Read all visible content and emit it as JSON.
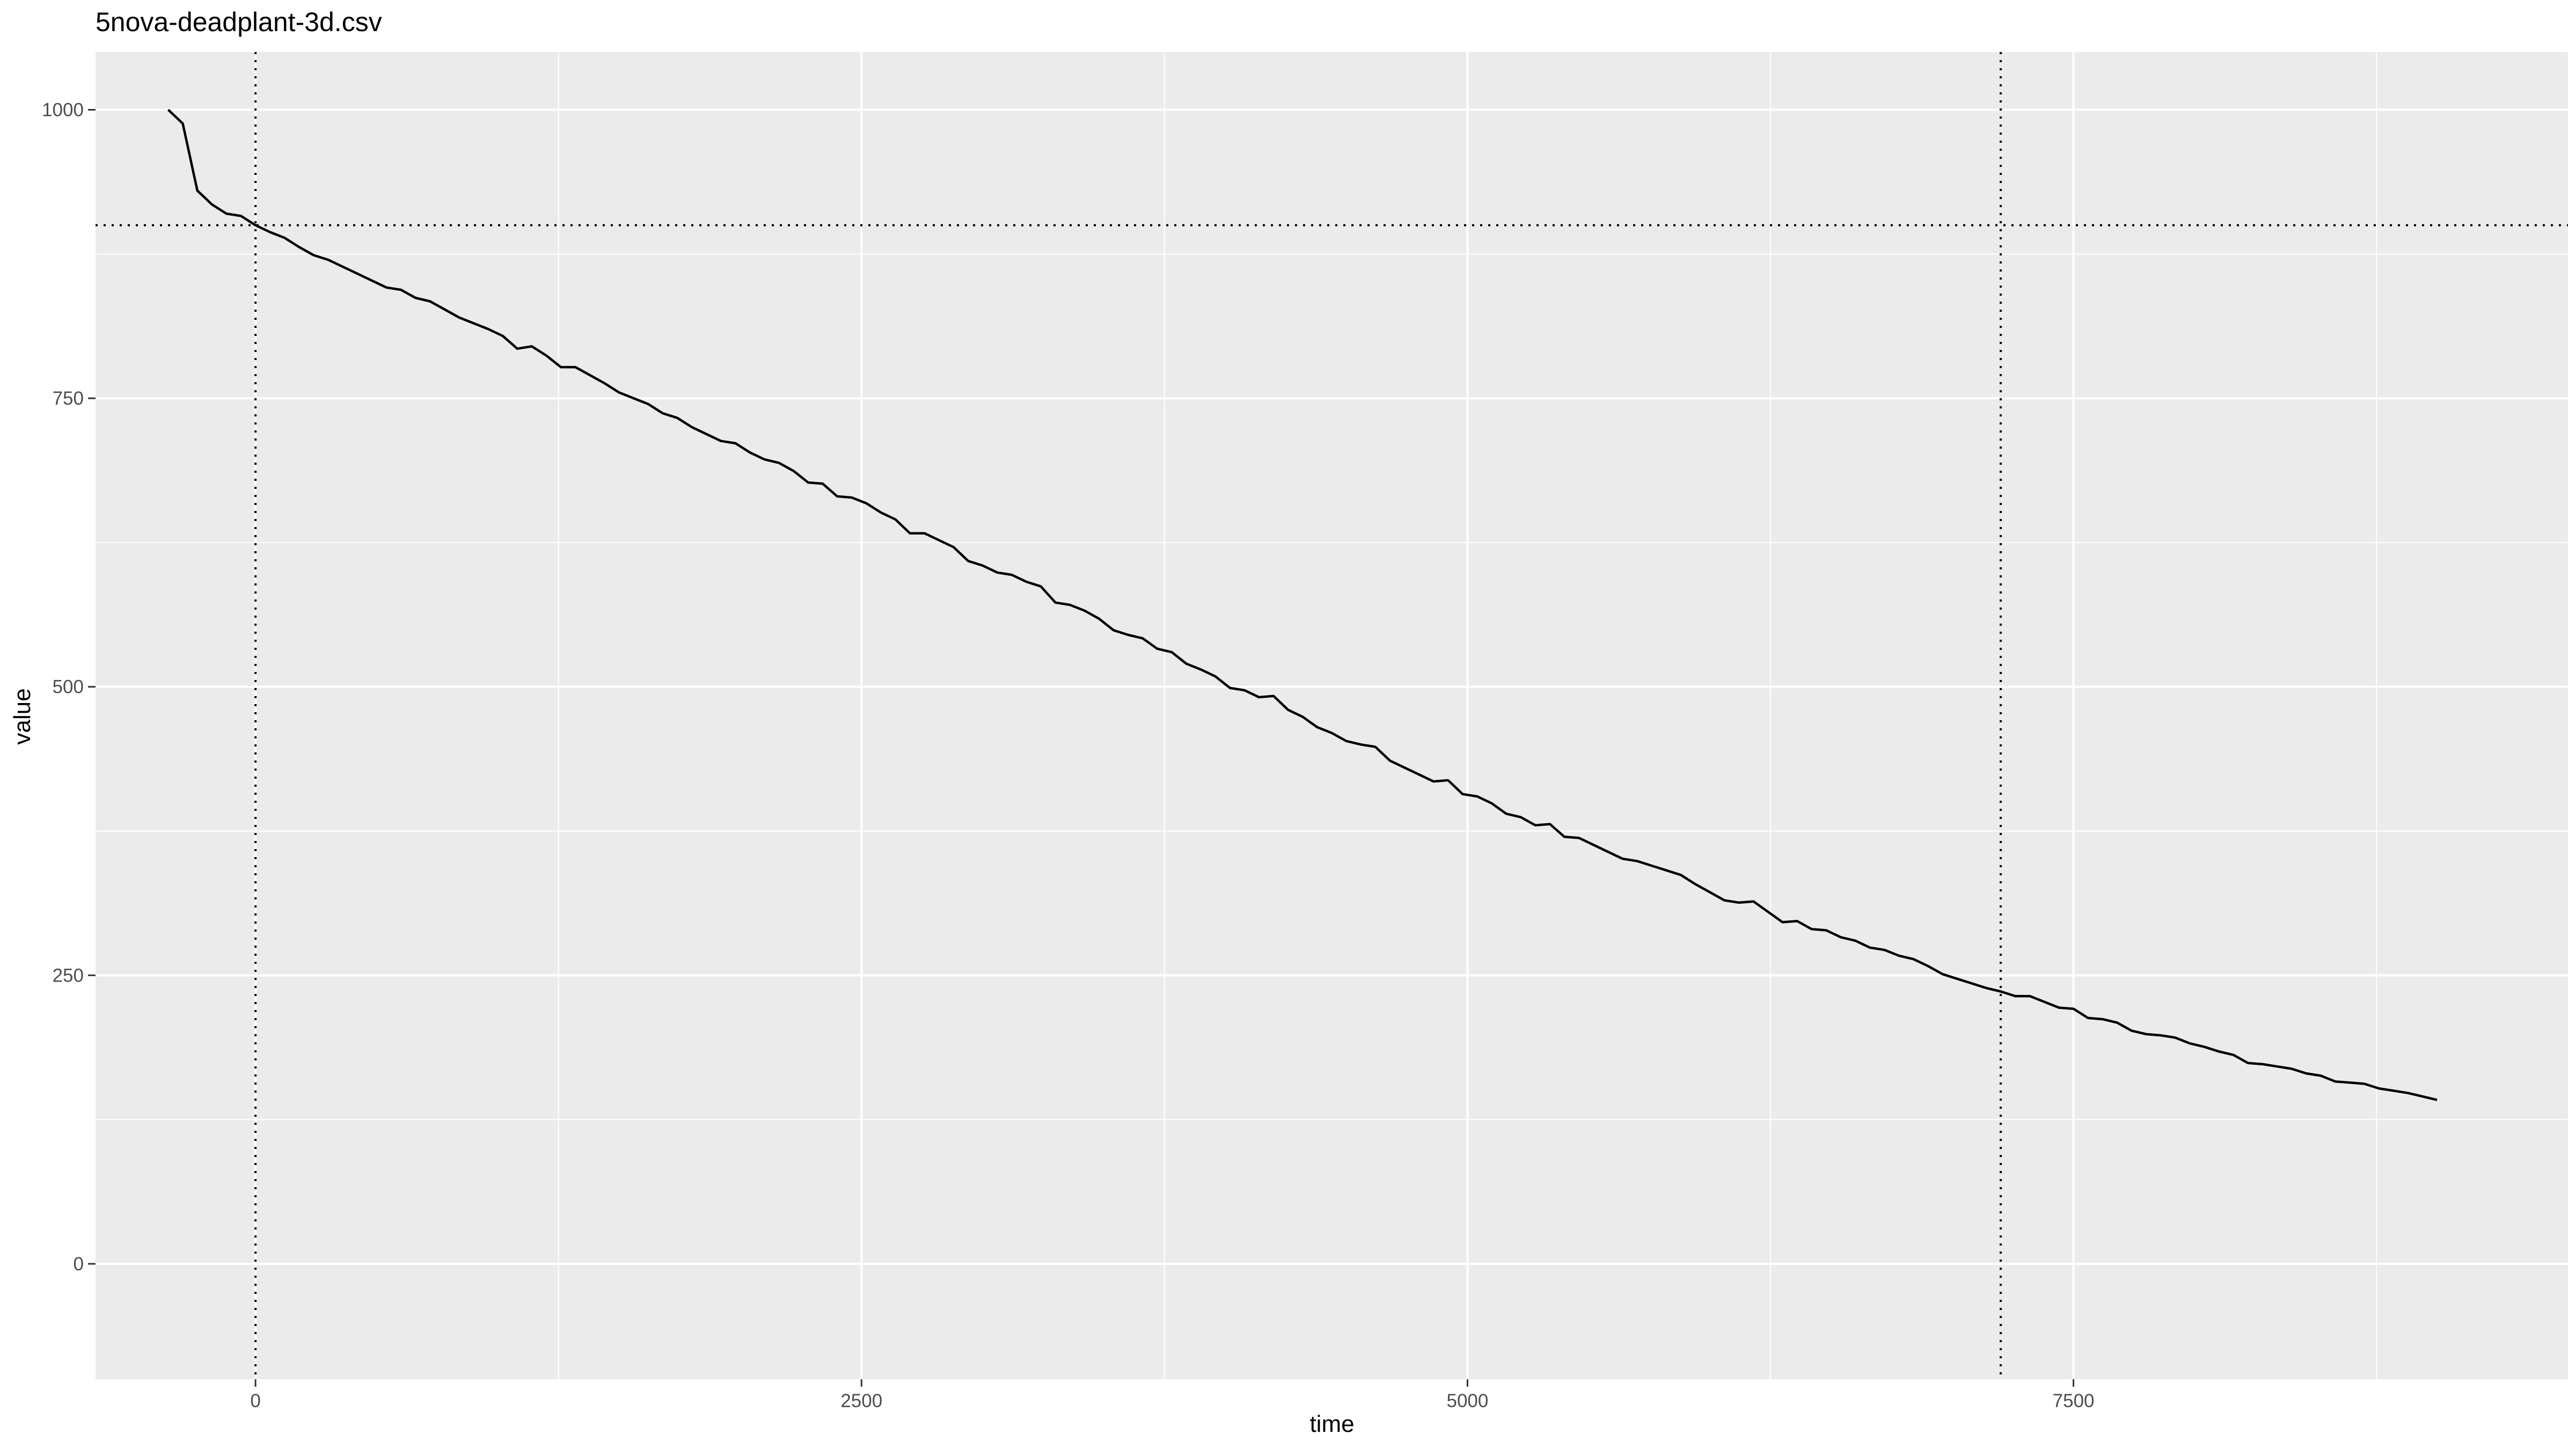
{
  "chart_data": {
    "type": "line",
    "title": "5nova-deadplant-3d.csv",
    "xlabel": "time",
    "ylabel": "value",
    "xlim": [
      -660,
      9540
    ],
    "ylim": [
      -100,
      1050
    ],
    "x_ticks": [
      0,
      2500,
      5000,
      7500
    ],
    "x_tick_labels": [
      "0",
      "2500",
      "5000",
      "7500"
    ],
    "x_minor_ticks": [
      -1250,
      1250,
      3750,
      6250,
      8750
    ],
    "y_ticks": [
      0,
      250,
      500,
      750,
      1000
    ],
    "y_tick_labels": [
      "0",
      "250",
      "500",
      "750",
      "1000"
    ],
    "y_minor_ticks": [
      125,
      375,
      625,
      875
    ],
    "grid": true,
    "legend": "none",
    "panel_background": "#ebebeb",
    "grid_color": "#ffffff",
    "line_color": "#000000",
    "reference_lines": {
      "vertical": [
        0,
        7200
      ],
      "horizontal": [
        900
      ],
      "style": "dotted"
    },
    "series": [
      {
        "x": [
          -360,
          -300,
          -240,
          -180,
          -120,
          -60,
          0,
          60,
          120,
          180,
          240,
          300,
          360,
          420,
          480,
          540,
          600,
          660,
          720,
          780,
          840,
          900,
          960,
          1020,
          1080,
          1140,
          1200,
          1260,
          1320,
          1380,
          1440,
          1500,
          1560,
          1620,
          1680,
          1740,
          1800,
          1860,
          1920,
          1980,
          2040,
          2100,
          2160,
          2220,
          2280,
          2340,
          2400,
          2460,
          2520,
          2580,
          2640,
          2700,
          2760,
          2820,
          2880,
          2940,
          3000,
          3060,
          3120,
          3180,
          3240,
          3300,
          3360,
          3420,
          3480,
          3540,
          3600,
          3660,
          3720,
          3780,
          3840,
          3900,
          3960,
          4020,
          4080,
          4140,
          4200,
          4260,
          4320,
          4380,
          4440,
          4500,
          4560,
          4620,
          4680,
          4740,
          4800,
          4860,
          4920,
          4980,
          5040,
          5100,
          5160,
          5220,
          5280,
          5340,
          5400,
          5460,
          5520,
          5580,
          5640,
          5700,
          5760,
          5820,
          5880,
          5940,
          6000,
          6060,
          6120,
          6180,
          6240,
          6300,
          6360,
          6420,
          6480,
          6540,
          6600,
          6660,
          6720,
          6780,
          6840,
          6900,
          6960,
          7020,
          7080,
          7140,
          7200,
          7260,
          7320,
          7380,
          7440,
          7500,
          7560,
          7620,
          7680,
          7740,
          7800,
          7860,
          7920,
          7980,
          8040,
          8100,
          8160,
          8220,
          8280,
          8340,
          8400,
          8460,
          8520,
          8580,
          8640,
          8700,
          8760,
          8820,
          8880,
          8940,
          9000
        ],
        "values": [
          1000,
          988,
          930,
          918,
          910,
          908,
          900,
          894,
          889,
          881,
          874,
          870,
          864,
          858,
          852,
          846,
          844,
          837,
          834,
          827,
          820,
          815,
          810,
          804,
          793,
          795,
          787,
          777,
          777,
          770,
          763,
          755,
          750,
          745,
          737,
          733,
          725,
          719,
          713,
          711,
          703,
          697,
          694,
          687,
          677,
          676,
          665,
          664,
          659,
          651,
          645,
          633,
          633,
          627,
          621,
          609,
          605,
          599,
          597,
          591,
          587,
          573,
          571,
          566,
          559,
          549,
          545,
          542,
          533,
          530,
          520,
          515,
          509,
          499,
          497,
          491,
          492,
          480,
          474,
          465,
          460,
          453,
          450,
          448,
          436,
          430,
          424,
          418,
          419,
          407,
          405,
          399,
          390,
          387,
          380,
          381,
          370,
          369,
          363,
          357,
          351,
          349,
          345,
          341,
          337,
          329,
          322,
          315,
          313,
          314,
          305,
          296,
          297,
          290,
          289,
          283,
          280,
          274,
          272,
          267,
          264,
          258,
          251,
          247,
          243,
          239,
          236,
          232,
          232,
          227,
          222,
          221,
          213,
          212,
          209,
          202,
          199,
          198,
          196,
          191,
          188,
          184,
          181,
          174,
          173,
          171,
          169,
          165,
          163,
          158,
          157,
          156,
          152,
          150,
          148,
          145,
          142
        ]
      }
    ]
  }
}
